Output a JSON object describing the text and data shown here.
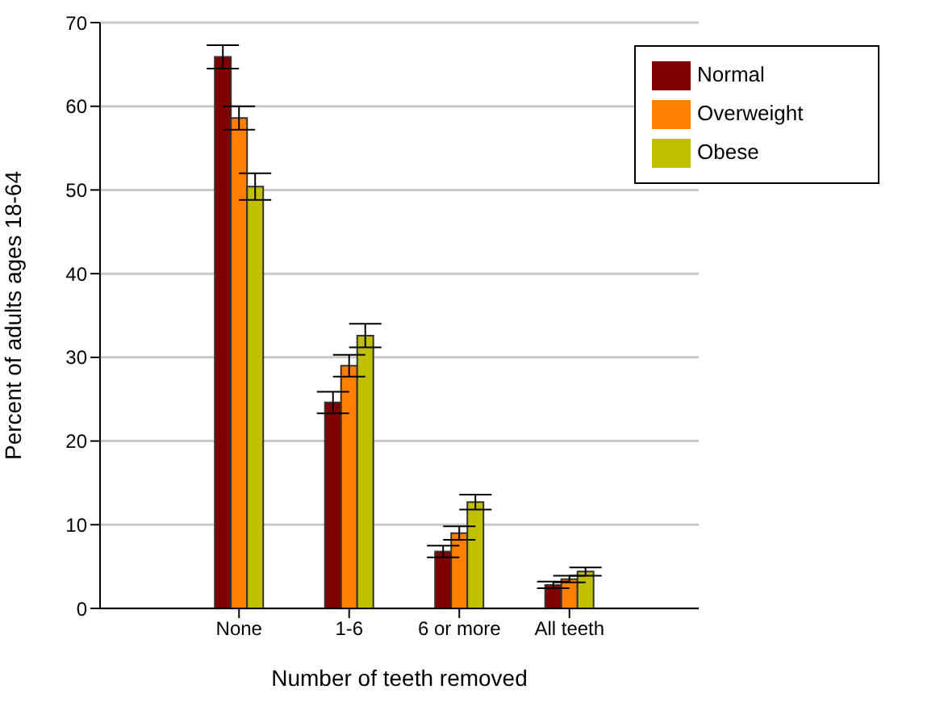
{
  "chart_data": {
    "type": "bar",
    "xlabel": "Number of teeth removed",
    "ylabel": "Percent of adults ages 18-64",
    "categories": [
      "None",
      "1-6",
      "6 or more",
      "All teeth"
    ],
    "series": [
      {
        "name": "Normal",
        "color": "#800000",
        "values": [
          65.9,
          24.6,
          6.8,
          2.8
        ],
        "errors": [
          1.4,
          1.3,
          0.7,
          0.4
        ]
      },
      {
        "name": "Overweight",
        "color": "#ff8000",
        "values": [
          58.6,
          29.0,
          9.0,
          3.5
        ],
        "errors": [
          1.4,
          1.3,
          0.8,
          0.4
        ]
      },
      {
        "name": "Obese",
        "color": "#c0c000",
        "values": [
          50.4,
          32.6,
          12.7,
          4.4
        ],
        "errors": [
          1.6,
          1.4,
          0.9,
          0.5
        ]
      }
    ],
    "ylim": [
      0,
      70
    ],
    "yticks": [
      0,
      10,
      20,
      30,
      40,
      50,
      60,
      70
    ],
    "grid": "y",
    "legend": "top right"
  }
}
